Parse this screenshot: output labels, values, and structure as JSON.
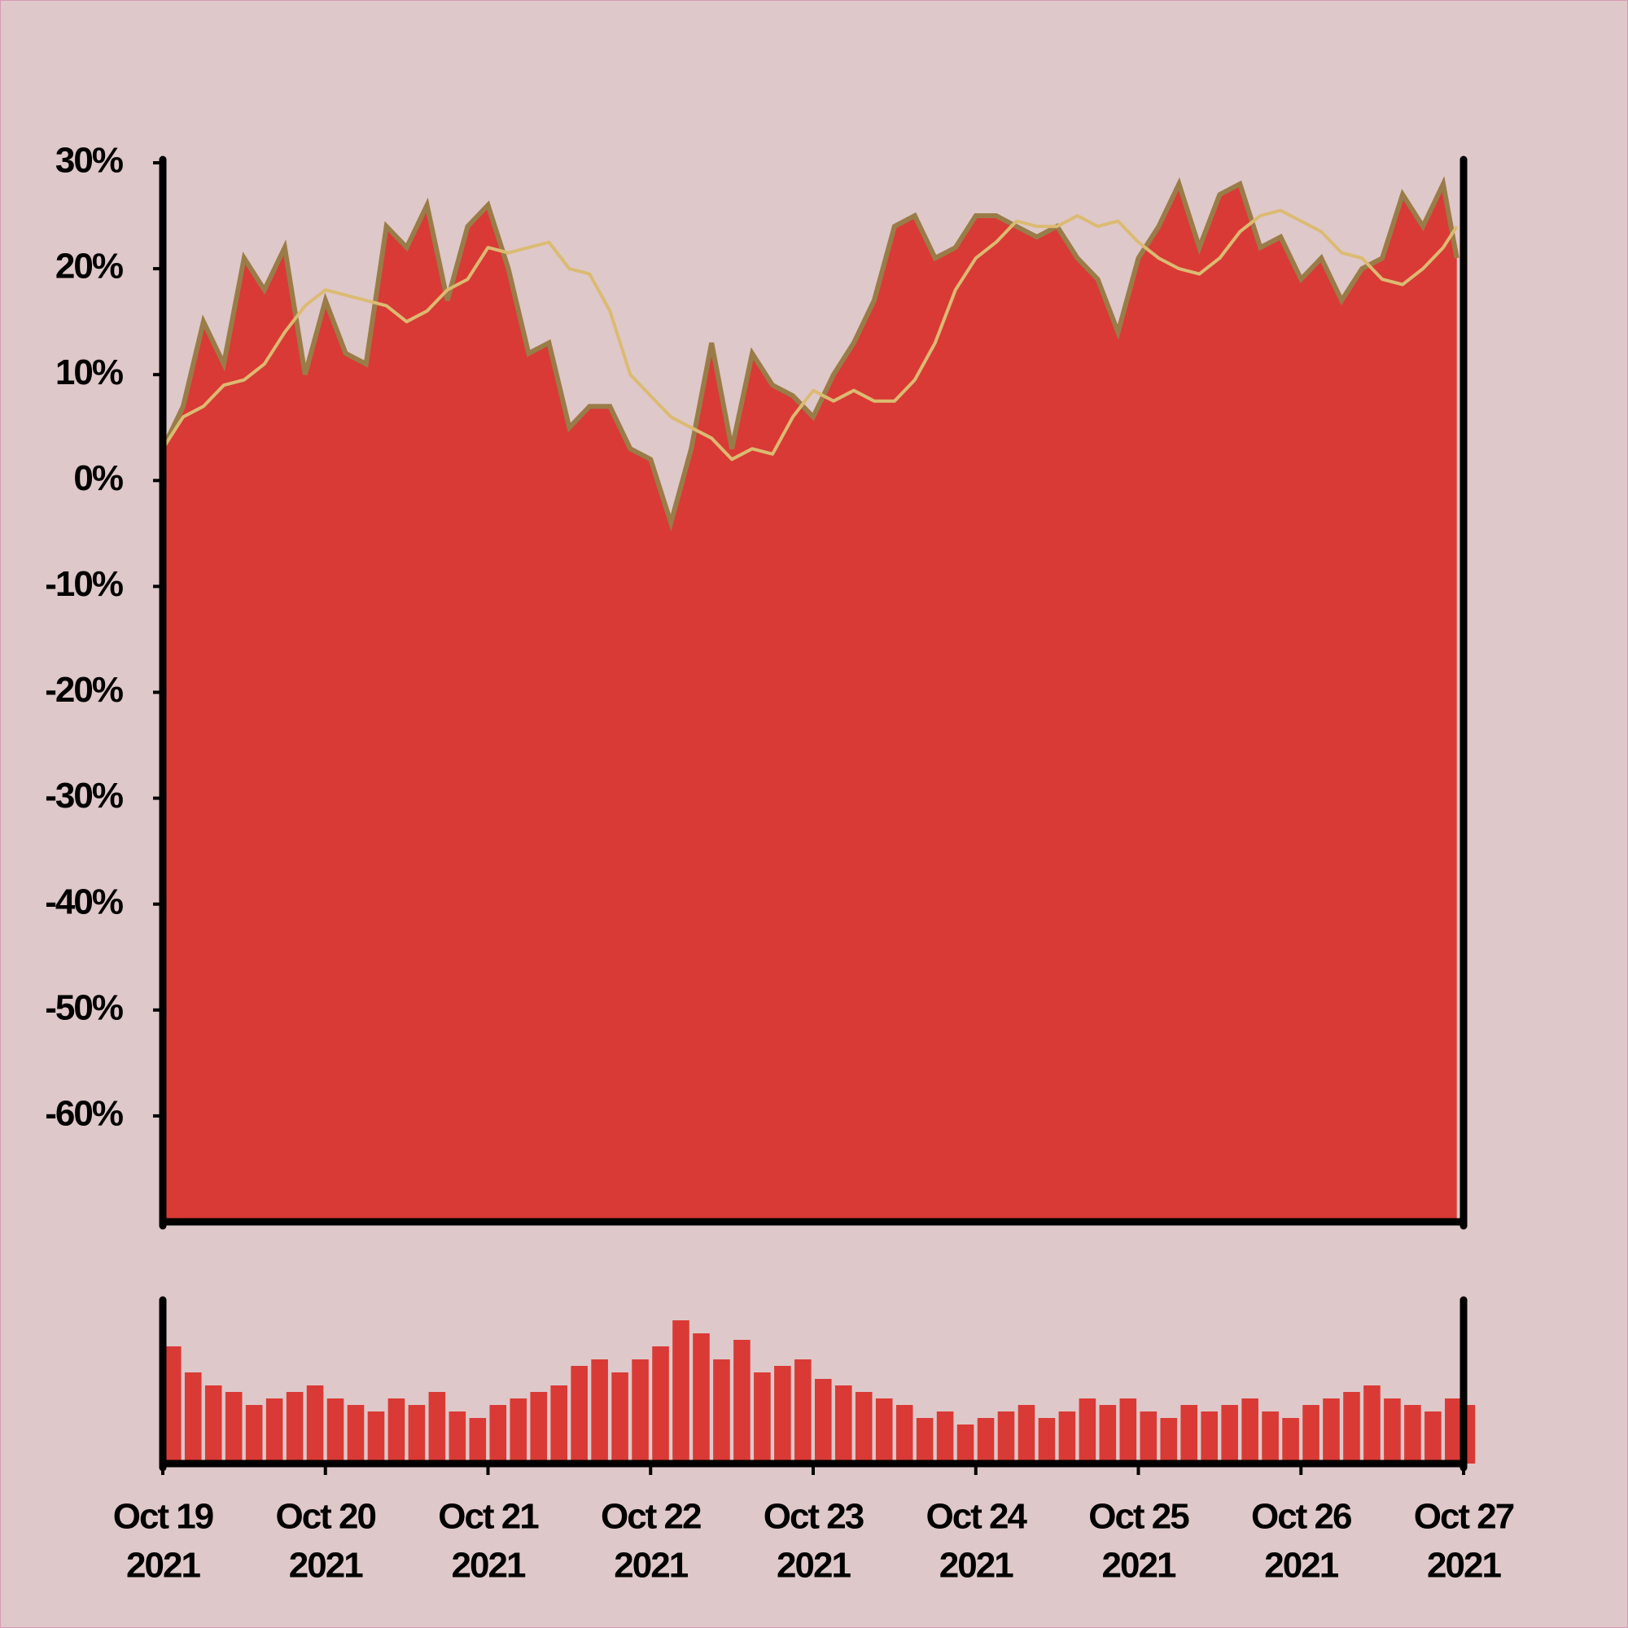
{
  "chart_data": [
    {
      "type": "area",
      "x": [
        "2021-10-19 00:00",
        "2021-10-19 03:00",
        "2021-10-19 06:00",
        "2021-10-19 09:00",
        "2021-10-19 12:00",
        "2021-10-19 15:00",
        "2021-10-19 18:00",
        "2021-10-19 21:00",
        "2021-10-20 00:00",
        "2021-10-20 03:00",
        "2021-10-20 06:00",
        "2021-10-20 09:00",
        "2021-10-20 12:00",
        "2021-10-20 15:00",
        "2021-10-20 18:00",
        "2021-10-20 21:00",
        "2021-10-21 00:00",
        "2021-10-21 03:00",
        "2021-10-21 06:00",
        "2021-10-21 09:00",
        "2021-10-21 12:00",
        "2021-10-21 15:00",
        "2021-10-21 18:00",
        "2021-10-21 21:00",
        "2021-10-22 00:00",
        "2021-10-22 03:00",
        "2021-10-22 06:00",
        "2021-10-22 09:00",
        "2021-10-22 12:00",
        "2021-10-22 15:00",
        "2021-10-22 18:00",
        "2021-10-22 21:00",
        "2021-10-23 00:00",
        "2021-10-23 03:00",
        "2021-10-23 06:00",
        "2021-10-23 09:00",
        "2021-10-23 12:00",
        "2021-10-23 15:00",
        "2021-10-23 18:00",
        "2021-10-23 21:00",
        "2021-10-24 00:00",
        "2021-10-24 03:00",
        "2021-10-24 06:00",
        "2021-10-24 09:00",
        "2021-10-24 12:00",
        "2021-10-24 15:00",
        "2021-10-24 18:00",
        "2021-10-24 21:00",
        "2021-10-25 00:00",
        "2021-10-25 03:00",
        "2021-10-25 06:00",
        "2021-10-25 09:00",
        "2021-10-25 12:00",
        "2021-10-25 15:00",
        "2021-10-25 18:00",
        "2021-10-25 21:00",
        "2021-10-26 00:00",
        "2021-10-26 03:00",
        "2021-10-26 06:00",
        "2021-10-26 09:00",
        "2021-10-26 12:00",
        "2021-10-26 15:00",
        "2021-10-26 18:00",
        "2021-10-26 21:00",
        "2021-10-26 23:00"
      ],
      "xlim": [
        "2021-10-19 00:00",
        "2021-10-27 00:00"
      ],
      "series": [
        {
          "color": "#d93a35",
          "line_color": "#9a7c48",
          "values": [
            3,
            7,
            15,
            11,
            21,
            18,
            22,
            10,
            17,
            12,
            11,
            24,
            22,
            26,
            17,
            24,
            26,
            20,
            12,
            13,
            5,
            7,
            7,
            3,
            2,
            -4,
            3,
            13,
            3,
            12,
            9,
            8,
            6,
            10,
            13,
            17,
            24,
            25,
            21,
            22,
            25,
            25,
            24,
            23,
            24,
            21,
            19,
            14,
            21,
            24,
            28,
            22,
            27,
            28,
            22,
            23,
            19,
            21,
            17,
            20,
            21,
            27,
            24,
            28,
            21
          ]
        },
        {
          "type": "line",
          "color": "#dbbb72",
          "values": [
            3,
            6,
            7,
            9,
            9.5,
            11,
            14,
            16.5,
            18,
            17.5,
            17,
            16.5,
            15,
            16,
            18,
            19,
            22,
            21.5,
            22,
            22.5,
            20,
            19.5,
            16,
            10,
            8,
            6,
            5,
            4,
            2,
            3,
            2.5,
            6,
            8.5,
            7.5,
            8.5,
            7.5,
            7.5,
            9.5,
            13,
            18,
            21,
            22.5,
            24.5,
            24,
            24,
            25,
            24,
            24.5,
            22.5,
            21,
            20,
            19.5,
            21,
            23.5,
            25,
            25.5,
            24.5,
            23.5,
            21.5,
            21,
            19,
            18.5,
            20,
            22,
            24
          ]
        }
      ],
      "ylim": [
        -70,
        30
      ],
      "yticks": [
        {
          "value": 30,
          "label": "30%"
        },
        {
          "value": 20,
          "label": "20%"
        },
        {
          "value": 10,
          "label": "10%"
        },
        {
          "value": 0,
          "label": "0%"
        },
        {
          "value": -10,
          "label": "-10%"
        },
        {
          "value": -20,
          "label": "-20%"
        },
        {
          "value": -30,
          "label": "-30%"
        },
        {
          "value": -40,
          "label": "-40%"
        },
        {
          "value": -50,
          "label": "-50%"
        },
        {
          "value": -60,
          "label": "-60%"
        }
      ]
    },
    {
      "type": "bar",
      "x": [
        "2021-10-19 00:00",
        "2021-10-19 03:00",
        "2021-10-19 06:00",
        "2021-10-19 09:00",
        "2021-10-19 12:00",
        "2021-10-19 15:00",
        "2021-10-19 18:00",
        "2021-10-19 21:00",
        "2021-10-20 00:00",
        "2021-10-20 03:00",
        "2021-10-20 06:00",
        "2021-10-20 09:00",
        "2021-10-20 12:00",
        "2021-10-20 15:00",
        "2021-10-20 18:00",
        "2021-10-20 21:00",
        "2021-10-21 00:00",
        "2021-10-21 03:00",
        "2021-10-21 06:00",
        "2021-10-21 09:00",
        "2021-10-21 12:00",
        "2021-10-21 15:00",
        "2021-10-21 18:00",
        "2021-10-21 21:00",
        "2021-10-22 00:00",
        "2021-10-22 03:00",
        "2021-10-22 06:00",
        "2021-10-22 09:00",
        "2021-10-22 12:00",
        "2021-10-22 15:00",
        "2021-10-22 18:00",
        "2021-10-22 21:00",
        "2021-10-23 00:00",
        "2021-10-23 03:00",
        "2021-10-23 06:00",
        "2021-10-23 09:00",
        "2021-10-23 12:00",
        "2021-10-23 15:00",
        "2021-10-23 18:00",
        "2021-10-23 21:00",
        "2021-10-24 00:00",
        "2021-10-24 03:00",
        "2021-10-24 06:00",
        "2021-10-24 09:00",
        "2021-10-24 12:00",
        "2021-10-24 15:00",
        "2021-10-24 18:00",
        "2021-10-24 21:00",
        "2021-10-25 00:00",
        "2021-10-25 03:00",
        "2021-10-25 06:00",
        "2021-10-25 09:00",
        "2021-10-25 12:00",
        "2021-10-25 15:00",
        "2021-10-25 18:00",
        "2021-10-25 21:00",
        "2021-10-26 00:00",
        "2021-10-26 03:00",
        "2021-10-26 06:00",
        "2021-10-26 09:00",
        "2021-10-26 12:00",
        "2021-10-26 15:00",
        "2021-10-26 18:00",
        "2021-10-26 21:00",
        "2021-10-26 23:00"
      ],
      "xlim": [
        "2021-10-19 00:00",
        "2021-10-27 00:00"
      ],
      "color": "#d93a35",
      "values": [
        90,
        70,
        60,
        55,
        45,
        50,
        55,
        60,
        50,
        45,
        40,
        50,
        45,
        55,
        40,
        35,
        45,
        50,
        55,
        60,
        75,
        80,
        70,
        80,
        90,
        110,
        100,
        80,
        95,
        70,
        75,
        80,
        65,
        60,
        55,
        50,
        45,
        35,
        40,
        30,
        35,
        40,
        45,
        35,
        40,
        50,
        45,
        50,
        40,
        35,
        45,
        40,
        45,
        50,
        40,
        35,
        45,
        50,
        55,
        60,
        50,
        45,
        40,
        50,
        45
      ],
      "xticks": [
        {
          "value": "2021-10-19 00:00",
          "label": [
            "Oct 19",
            "2021"
          ]
        },
        {
          "value": "2021-10-20 00:00",
          "label": [
            "Oct 20",
            "2021"
          ]
        },
        {
          "value": "2021-10-21 00:00",
          "label": [
            "Oct 21",
            "2021"
          ]
        },
        {
          "value": "2021-10-22 00:00",
          "label": [
            "Oct 22",
            "2021"
          ]
        },
        {
          "value": "2021-10-23 00:00",
          "label": [
            "Oct 23",
            "2021"
          ]
        },
        {
          "value": "2021-10-24 00:00",
          "label": [
            "Oct 24",
            "2021"
          ]
        },
        {
          "value": "2021-10-25 00:00",
          "label": [
            "Oct 25",
            "2021"
          ]
        },
        {
          "value": "2021-10-26 00:00",
          "label": [
            "Oct 26",
            "2021"
          ]
        },
        {
          "value": "2021-10-27 00:00",
          "label": [
            "Oct 27",
            "2021"
          ]
        }
      ]
    }
  ]
}
